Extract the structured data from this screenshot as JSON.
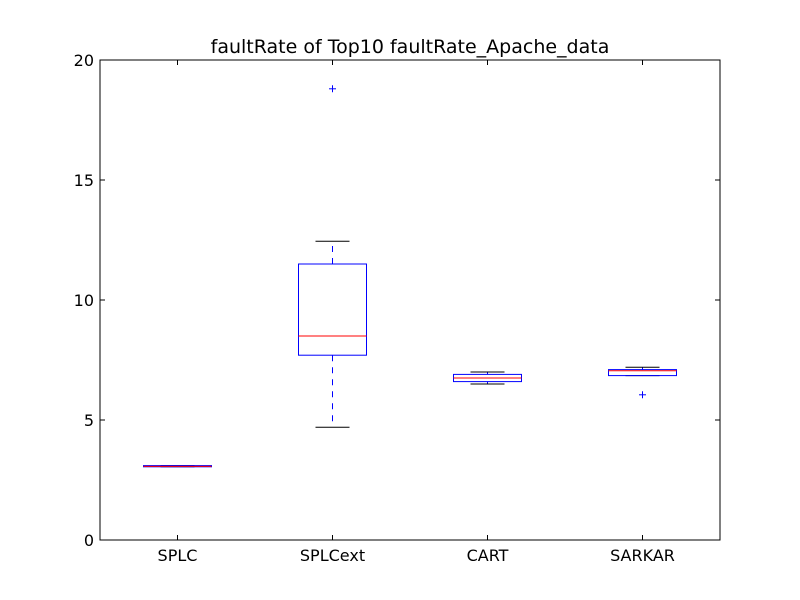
{
  "chart_data": {
    "type": "box",
    "title": "faultRate of Top10 faultRate_Apache_data",
    "xlabel": "",
    "ylabel": "",
    "ylim": [
      0,
      20
    ],
    "yticks": [
      0,
      5,
      10,
      15,
      20
    ],
    "categories": [
      "SPLC",
      "SPLCext",
      "CART",
      "SARKAR"
    ],
    "boxes": [
      {
        "name": "SPLC",
        "whisker_low": 3.05,
        "q1": 3.05,
        "median": 3.07,
        "q3": 3.1,
        "whisker_high": 3.1,
        "outliers": []
      },
      {
        "name": "SPLCext",
        "whisker_low": 4.7,
        "q1": 7.7,
        "median": 8.5,
        "q3": 11.5,
        "whisker_high": 12.45,
        "outliers": [
          18.8
        ]
      },
      {
        "name": "CART",
        "whisker_low": 6.5,
        "q1": 6.6,
        "median": 6.75,
        "q3": 6.9,
        "whisker_high": 7.0,
        "outliers": []
      },
      {
        "name": "SARKAR",
        "whisker_low": 6.85,
        "q1": 6.85,
        "median": 7.05,
        "q3": 7.1,
        "whisker_high": 7.2,
        "outliers": [
          6.05
        ]
      }
    ],
    "colors": {
      "box": "#0000ff",
      "median": "#ff0000",
      "whisker": "#0000ff",
      "cap": "#000000",
      "outlier": "#0000ff"
    },
    "grid": false
  }
}
